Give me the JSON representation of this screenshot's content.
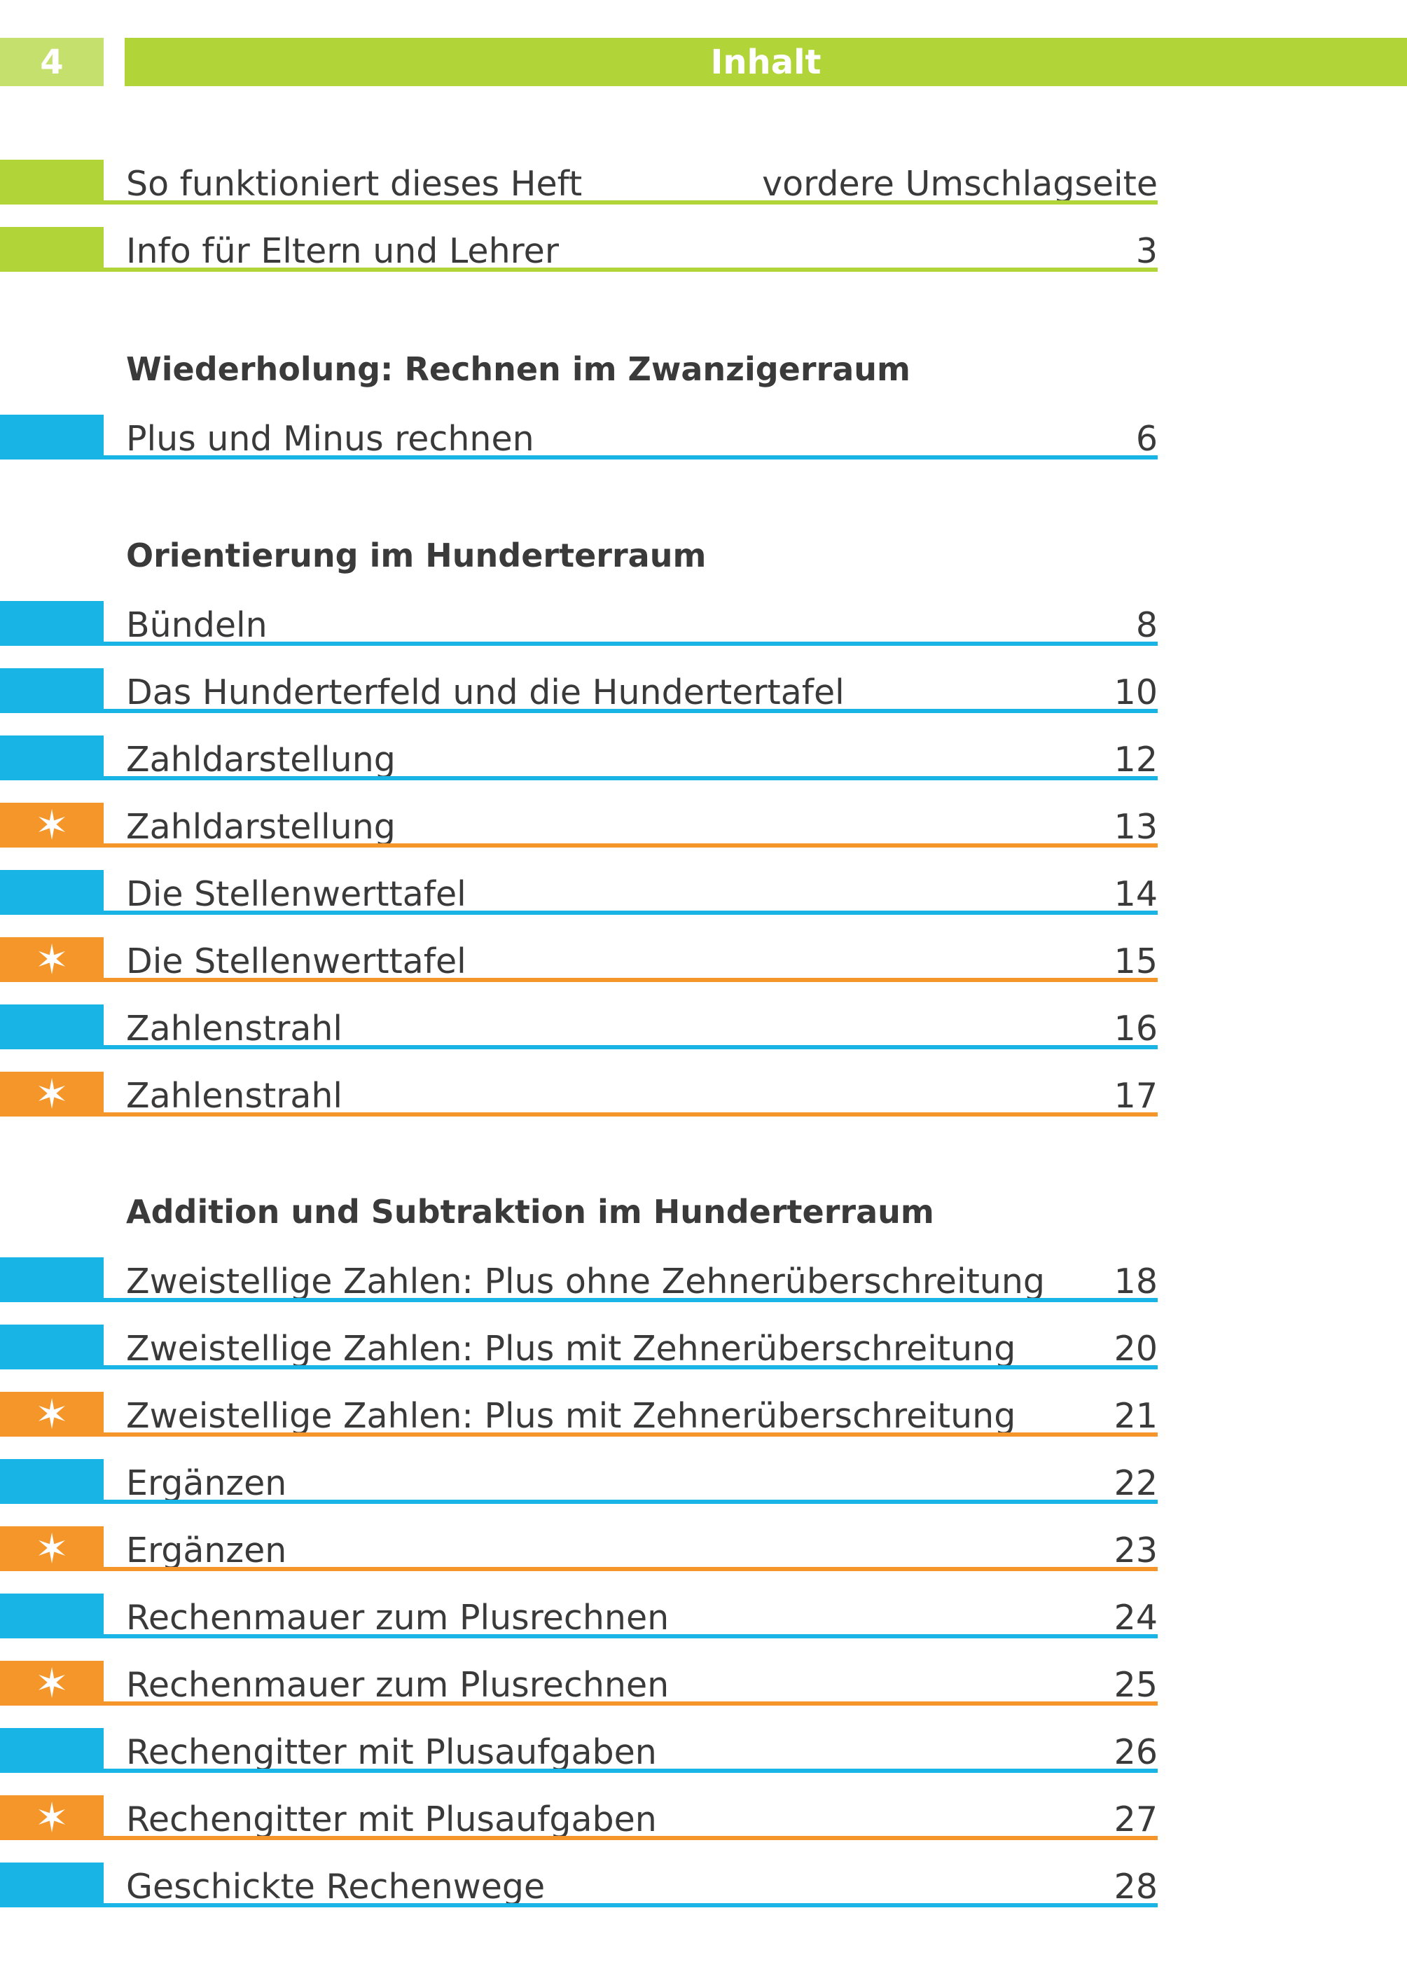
{
  "header": {
    "page_number": "4",
    "title": "Inhalt"
  },
  "colors": {
    "green": "#b1d438",
    "green_light": "#c5e06d",
    "blue": "#18b4e6",
    "orange": "#f5962a"
  },
  "intro": [
    {
      "title": "So funktioniert dieses Heft",
      "page": "vordere Umschlagseite",
      "color": "green",
      "star": false
    },
    {
      "title": "Info für Eltern und Lehrer",
      "page": "3",
      "color": "green",
      "star": false
    }
  ],
  "sections": [
    {
      "heading": "Wiederholung: Rechnen im Zwanzigerraum",
      "entries": [
        {
          "title": "Plus und Minus rechnen",
          "page": "6",
          "color": "blue",
          "star": false
        }
      ]
    },
    {
      "heading": "Orientierung im Hunderterraum",
      "entries": [
        {
          "title": "Bündeln",
          "page": "8",
          "color": "blue",
          "star": false
        },
        {
          "title": "Das Hunderterfeld und die Hundertertafel",
          "page": "10",
          "color": "blue",
          "star": false
        },
        {
          "title": "Zahldarstellung",
          "page": "12",
          "color": "blue",
          "star": false
        },
        {
          "title": "Zahldarstellung",
          "page": "13",
          "color": "orange",
          "star": true
        },
        {
          "title": "Die Stellenwerttafel",
          "page": "14",
          "color": "blue",
          "star": false
        },
        {
          "title": "Die Stellenwerttafel",
          "page": "15",
          "color": "orange",
          "star": true
        },
        {
          "title": "Zahlenstrahl",
          "page": "16",
          "color": "blue",
          "star": false
        },
        {
          "title": "Zahlenstrahl",
          "page": "17",
          "color": "orange",
          "star": true
        }
      ]
    },
    {
      "heading": "Addition und Subtraktion im Hunderterraum",
      "entries": [
        {
          "title": "Zweistellige Zahlen: Plus ohne Zehnerüberschreitung",
          "page": "18",
          "color": "blue",
          "star": false
        },
        {
          "title": "Zweistellige Zahlen: Plus mit Zehnerüberschreitung",
          "page": "20",
          "color": "blue",
          "star": false
        },
        {
          "title": "Zweistellige Zahlen: Plus mit Zehnerüberschreitung",
          "page": "21",
          "color": "orange",
          "star": true
        },
        {
          "title": "Ergänzen",
          "page": "22",
          "color": "blue",
          "star": false
        },
        {
          "title": "Ergänzen",
          "page": "23",
          "color": "orange",
          "star": true
        },
        {
          "title": "Rechenmauer zum Plusrechnen",
          "page": "24",
          "color": "blue",
          "star": false
        },
        {
          "title": "Rechenmauer zum Plusrechnen",
          "page": "25",
          "color": "orange",
          "star": true
        },
        {
          "title": "Rechengitter mit Plusaufgaben",
          "page": "26",
          "color": "blue",
          "star": false
        },
        {
          "title": "Rechengitter mit Plusaufgaben",
          "page": "27",
          "color": "orange",
          "star": true
        },
        {
          "title": "Geschickte Rechenwege",
          "page": "28",
          "color": "blue",
          "star": false
        }
      ]
    }
  ]
}
